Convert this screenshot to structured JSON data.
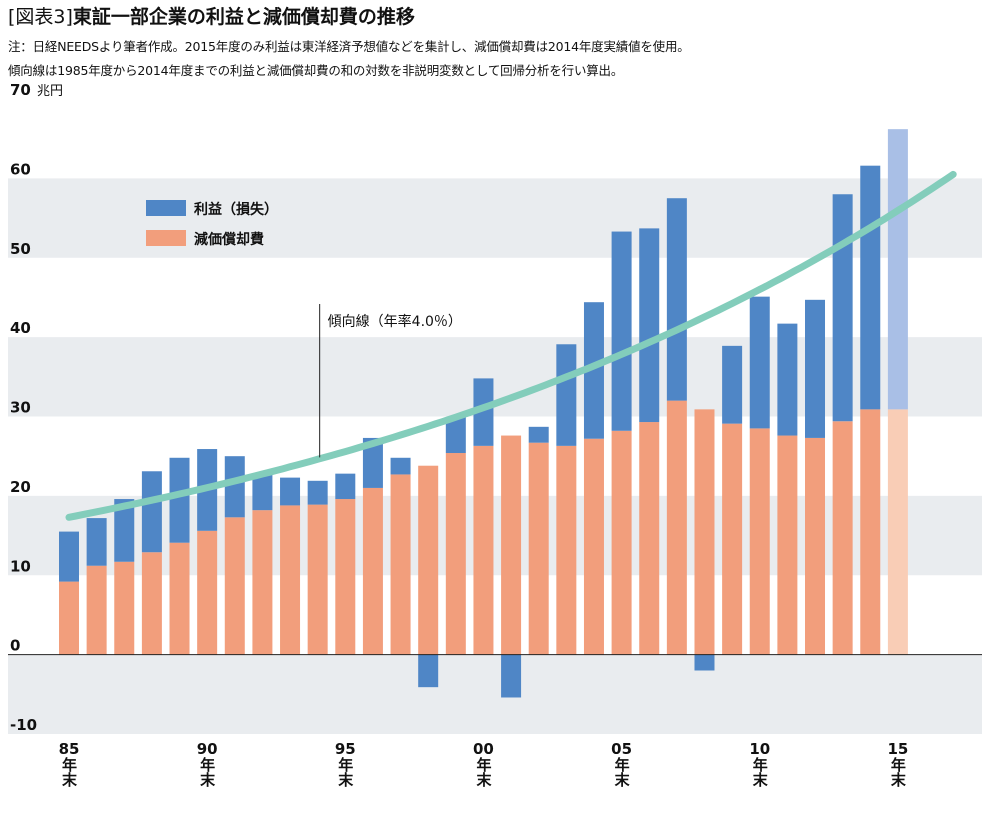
{
  "header": {
    "label": "[図表3]",
    "title": "東証一部企業の利益と減価償却費の推移",
    "note_line1": "注：日経NEEDSより筆者作成。2015年度のみ利益は東洋経済予想値などを集計し、減価償却費は2014年度実績値を使用。",
    "note_line2": "傾向線は1985年度から2014年度までの利益と減価償却費の和の対数を非説明変数として回帰分析を行い算出。"
  },
  "colors": {
    "profit": "#4f86c6",
    "depreciation": "#f29e7c",
    "profit_estimate": "#a9bfe6",
    "depreciation_estimate": "#f9cdb6",
    "trend": "#83cdbb",
    "band": "#e9ecef"
  },
  "chart_data": {
    "type": "bar",
    "stacked": true,
    "y_unit": "兆円",
    "ylim": [
      -10,
      70
    ],
    "yticks": [
      70,
      60,
      50,
      40,
      30,
      20,
      10,
      0,
      -10
    ],
    "years": [
      1985,
      1986,
      1987,
      1988,
      1989,
      1990,
      1991,
      1992,
      1993,
      1994,
      1995,
      1996,
      1997,
      1998,
      1999,
      2000,
      2001,
      2002,
      2003,
      2004,
      2005,
      2006,
      2007,
      2008,
      2009,
      2010,
      2011,
      2012,
      2013,
      2014,
      2015
    ],
    "x_ticks": [
      {
        "year": 1985,
        "label": "85",
        "suffix": "年末"
      },
      {
        "year": 1990,
        "label": "90",
        "suffix": "年末"
      },
      {
        "year": 1995,
        "label": "95",
        "suffix": "年末"
      },
      {
        "year": 2000,
        "label": "00",
        "suffix": "年末"
      },
      {
        "year": 2005,
        "label": "05",
        "suffix": "年末"
      },
      {
        "year": 2010,
        "label": "10",
        "suffix": "年末"
      },
      {
        "year": 2015,
        "label": "15",
        "suffix": "年末"
      }
    ],
    "series": [
      {
        "name": "減価償却費",
        "key": "depreciation",
        "values": [
          9.2,
          11.2,
          11.7,
          12.9,
          14.1,
          15.6,
          17.3,
          18.2,
          18.8,
          18.9,
          19.6,
          21.0,
          22.7,
          23.8,
          25.4,
          26.3,
          27.6,
          26.7,
          26.3,
          27.2,
          28.2,
          29.3,
          32.0,
          30.9,
          29.1,
          28.5,
          27.6,
          27.3,
          29.4,
          30.9,
          30.9
        ]
      },
      {
        "name": "利益（損失）",
        "key": "profit",
        "values": [
          6.3,
          6.0,
          7.9,
          10.2,
          10.7,
          10.3,
          7.7,
          4.5,
          3.5,
          3.0,
          3.2,
          6.3,
          2.1,
          -4.1,
          4.5,
          8.5,
          -5.4,
          2.0,
          12.8,
          17.2,
          25.1,
          24.4,
          25.5,
          -2.0,
          9.8,
          16.6,
          14.1,
          17.4,
          28.6,
          30.7,
          35.3
        ]
      }
    ],
    "estimate_years": [
      2015
    ],
    "trend": {
      "label": "傾向線（年率4.0％）",
      "rate_percent": 4.0,
      "start_year": 1985,
      "end_year": 2017,
      "start_value": 17.3,
      "end_value": 60.5,
      "label_anchor_year": 1994
    }
  }
}
